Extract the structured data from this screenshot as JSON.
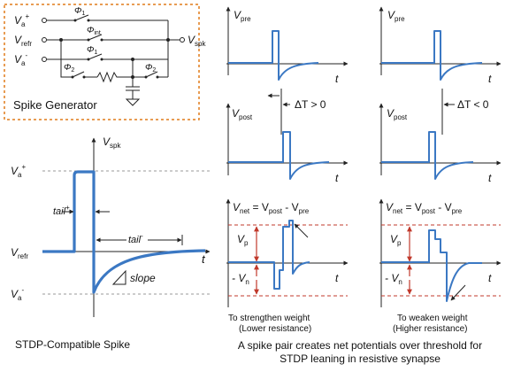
{
  "generator": {
    "label": "Spike Generator",
    "in_a_plus": "V",
    "in_a_plus_sub": "a",
    "in_a_plus_sup": "+",
    "in_refr": "V",
    "in_refr_sub": "refr",
    "in_a_minus": "V",
    "in_a_minus_sub": "a",
    "in_a_minus_sup": "-",
    "phi1_top": "Φ",
    "phi1_top_sub": "1",
    "phi_int": "Φ",
    "phi_int_sub": "int",
    "phi1_mid": "Φ",
    "phi1_mid_sub": "1",
    "phi2_right": "Φ",
    "phi2_right_sub": "2",
    "phi2_left": "Φ",
    "phi2_left_sub": "2",
    "out": "V",
    "out_sub": "spk",
    "border_color": "#e07b1a"
  },
  "spike": {
    "y_axis": "V",
    "y_axis_sub": "spk",
    "va_plus": "V",
    "va_plus_sub": "a",
    "va_plus_sup": "+",
    "vrefr": "V",
    "vrefr_sub": "refr",
    "va_minus": "V",
    "va_minus_sub": "a",
    "va_minus_sup": "-",
    "tail_plus": "tail",
    "tail_plus_sup": "+",
    "tail_minus": "tail",
    "tail_minus_sup": "-",
    "slope": "slope",
    "t": "t",
    "caption": "STDP-Compatible Spike"
  },
  "waves": {
    "vpre": "V",
    "vpre_sub": "pre",
    "vpost": "V",
    "vpost_sub": "post",
    "t": "t",
    "dt_pos": "ΔT > 0",
    "dt_neg": "ΔT < 0",
    "vnet_a": "V",
    "vnet_a_sub": "net",
    "vnet_b": " = V",
    "vnet_b_sub": "post",
    "vnet_c": " - V",
    "vnet_c_sub": "pre",
    "vp": "V",
    "vp_sub": "p",
    "vn": "- V",
    "vn_sub": "n",
    "left_caption_1": "To strengthen weight",
    "left_caption_2": "(Lower resistance)",
    "right_caption_1": "To weaken weight",
    "right_caption_2": "(Higher resistance)",
    "bottom_caption_1": "A spike pair creates net potentials over threshold for",
    "bottom_caption_2": "STDP leaning in resistive synapse",
    "wave_color": "#3b78c3",
    "threshold_color": "#c0392b"
  }
}
